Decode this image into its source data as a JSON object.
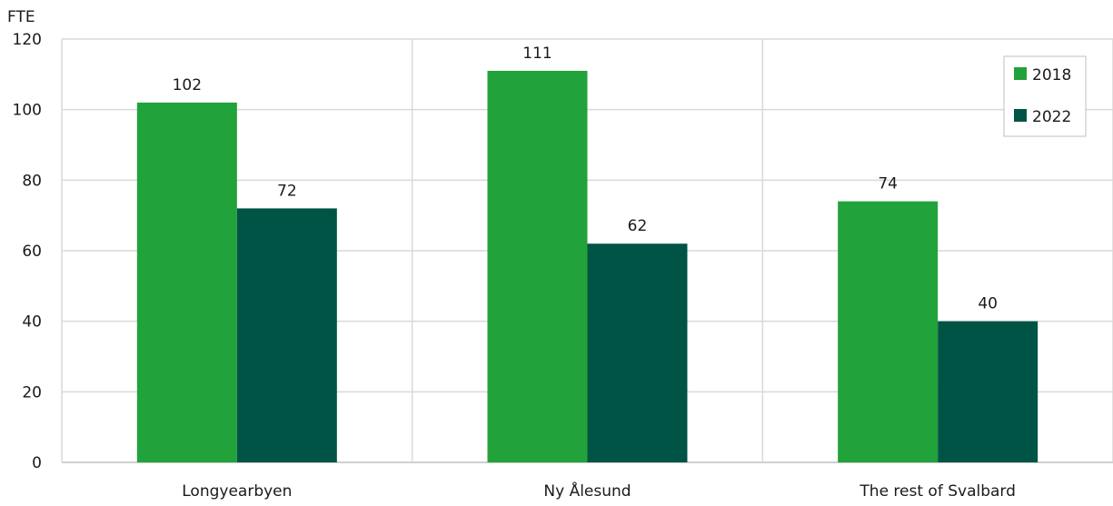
{
  "chart_data": {
    "type": "bar",
    "title": "",
    "ylabel": "FTE",
    "xlabel": "",
    "ylim": [
      0,
      120
    ],
    "yticks": [
      0,
      20,
      40,
      60,
      80,
      100,
      120
    ],
    "grid": true,
    "legend_position": "top-right",
    "categories": [
      "Longyearbyen",
      "Ny Ålesund",
      "The rest of Svalbard"
    ],
    "series": [
      {
        "name": "2018",
        "color": "#22a23a",
        "values": [
          102,
          111,
          74
        ]
      },
      {
        "name": "2022",
        "color": "#005445",
        "values": [
          72,
          62,
          40
        ]
      }
    ],
    "data_labels": true
  },
  "colors": {
    "grid": "#d9d9d9",
    "axis": "#bfbfbf",
    "text": "#1a1a1a"
  }
}
